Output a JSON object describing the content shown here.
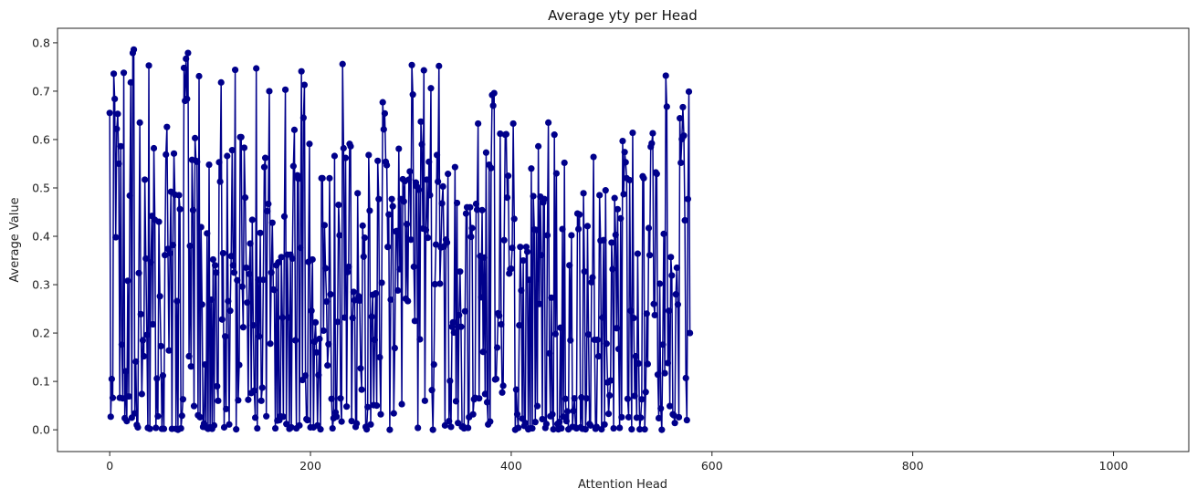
{
  "chart_data": {
    "type": "line",
    "title": "Average yty per Head",
    "xlabel": "Attention Head",
    "ylabel": "Average Value",
    "xlim": [
      -52,
      1075
    ],
    "ylim": [
      -0.045,
      0.83
    ],
    "xticks": [
      0,
      200,
      400,
      600,
      800,
      1000
    ],
    "yticks": [
      0.0,
      0.1,
      0.2,
      0.3,
      0.4,
      0.5,
      0.6,
      0.7,
      0.8
    ],
    "xtick_labels": [
      "0",
      "200",
      "400",
      "600",
      "800",
      "1000"
    ],
    "ytick_labels": [
      "0.0",
      "0.1",
      "0.2",
      "0.3",
      "0.4",
      "0.5",
      "0.6",
      "0.7",
      "0.8"
    ],
    "grid": false,
    "legend": "none",
    "marker": "circle",
    "color": "#00008b",
    "series": [
      {
        "x_start": 0,
        "x_step": 1,
        "values": [
          0.655,
          0.027,
          0.105,
          0.066,
          0.736,
          0.684,
          0.398,
          0.622,
          0.653,
          0.55,
          0.066,
          0.586,
          0.176,
          0.065,
          0.738,
          0.024,
          0.121,
          0.018,
          0.308,
          0.069,
          0.484,
          0.718,
          0.025,
          0.779,
          0.786,
          0.034,
          0.141,
          0.01,
          0.005,
          0.324,
          0.635,
          0.239,
          0.074,
          0.185,
          0.152,
          0.517,
          0.354,
          0.196,
          0.004,
          0.753,
          0.002,
          0.346,
          0.442,
          0.218,
          0.582,
          0.434,
          0.004,
          0.106,
          0.028,
          0.43,
          0.276,
          0.173,
          0.002,
          0.112,
          0.002,
          0.361,
          0.569,
          0.626,
          0.374,
          0.164,
          0.365,
          0.492,
          0.002,
          0.382,
          0.571,
          0.486,
          0.002,
          0.266,
          0.0,
          0.485,
          0.456,
          0.003,
          0.029,
          0.063,
          0.748,
          0.68,
          0.767,
          0.684,
          0.779,
          0.152,
          0.38,
          0.131,
          0.558,
          0.454,
          0.049,
          0.603,
          0.556,
          0.554,
          0.03,
          0.731,
          0.026,
          0.419,
          0.259,
          0.006,
          0.013,
          0.135,
          0.005,
          0.406,
          0.002,
          0.548,
          0.005,
          0.269,
          0.002,
          0.352,
          0.009,
          0.34,
          0.325,
          0.09,
          0.06,
          0.553,
          0.513,
          0.718,
          0.228,
          0.365,
          0.005,
          0.193,
          0.043,
          0.566,
          0.266,
          0.011,
          0.246,
          0.359,
          0.578,
          0.34,
          0.325,
          0.744,
          0.001,
          0.309,
          0.061,
          0.134,
          0.605,
          0.605,
          0.296,
          0.212,
          0.583,
          0.48,
          0.335,
          0.263,
          0.062,
          0.322,
          0.385,
          0.076,
          0.434,
          0.216,
          0.081,
          0.025,
          0.747,
          0.003,
          0.31,
          0.193,
          0.407,
          0.06,
          0.087,
          0.31,
          0.543,
          0.562,
          0.028,
          0.452,
          0.467,
          0.7,
          0.178,
          0.325,
          0.428,
          0.29,
          0.289,
          0.003,
          0.34,
          0.019,
          0.346,
          0.02,
          0.028,
          0.357,
          0.232,
          0.027,
          0.441,
          0.703,
          0.012,
          0.362,
          0.232,
          0.002,
          0.362,
          0.005,
          0.354,
          0.545,
          0.62,
          0.185,
          0.003,
          0.526,
          0.519,
          0.009,
          0.376,
          0.741,
          0.103,
          0.645,
          0.713,
          0.112,
          0.022,
          0.02,
          0.347,
          0.591,
          0.005,
          0.246,
          0.352,
          0.005,
          0.182,
          0.222,
          0.16,
          0.009,
          0.113,
          0.188,
          0.001,
          0.52,
          0.52,
          0.205,
          0.423,
          0.334,
          0.265,
          0.133,
          0.177,
          0.52,
          0.28,
          0.064,
          0.003,
          0.024,
          0.566,
          0.036,
          0.027,
          0.223,
          0.465,
          0.402,
          0.065,
          0.017,
          0.756,
          0.582,
          0.232,
          0.562,
          0.048,
          0.326,
          0.337,
          0.591,
          0.586,
          0.018,
          0.231,
          0.285,
          0.268,
          0.006,
          0.013,
          0.489,
          0.276,
          0.267,
          0.127,
          0.083,
          0.422,
          0.358,
          0.397,
          0.006,
          0.001,
          0.047,
          0.568,
          0.453,
          0.011,
          0.234,
          0.279,
          0.051,
          0.186,
          0.282,
          0.05,
          0.556,
          0.477,
          0.15,
          0.032,
          0.304,
          0.677,
          0.621,
          0.654,
          0.554,
          0.547,
          0.378,
          0.445,
          0.0,
          0.269,
          0.477,
          0.462,
          0.034,
          0.169,
          0.41,
          0.411,
          0.288,
          0.581,
          0.332,
          0.477,
          0.053,
          0.518,
          0.472,
          0.514,
          0.271,
          0.425,
          0.266,
          0.517,
          0.534,
          0.393,
          0.754,
          0.693,
          0.337,
          0.225,
          0.511,
          0.503,
          0.004,
          0.496,
          0.187,
          0.637,
          0.59,
          0.416,
          0.743,
          0.06,
          0.413,
          0.517,
          0.397,
          0.554,
          0.485,
          0.706,
          0.082,
          0.0,
          0.135,
          0.301,
          0.383,
          0.568,
          0.513,
          0.752,
          0.302,
          0.377,
          0.468,
          0.503,
          0.379,
          0.009,
          0.393,
          0.387,
          0.529,
          0.018,
          0.101,
          0.006,
          0.213,
          0.222,
          0.201,
          0.543,
          0.059,
          0.469,
          0.014,
          0.237,
          0.327,
          0.213,
          0.006,
          0.007,
          0.003,
          0.245,
          0.447,
          0.46,
          0.004,
          0.026,
          0.46,
          0.399,
          0.417,
          0.032,
          0.063,
          0.066,
          0.467,
          0.455,
          0.633,
          0.065,
          0.359,
          0.274,
          0.454,
          0.161,
          0.356,
          0.074,
          0.573,
          0.057,
          0.011,
          0.548,
          0.017,
          0.541,
          0.692,
          0.67,
          0.696,
          0.104,
          0.105,
          0.17,
          0.241,
          0.236,
          0.612,
          0.218,
          0.077,
          0.091,
          0.392,
          0.61,
          0.611,
          0.48,
          0.525,
          0.323,
          0.332,
          0.333,
          0.376,
          0.633,
          0.436,
          0.0,
          0.083,
          0.032,
          0.004,
          0.216,
          0.378,
          0.288,
          0.023,
          0.35,
          0.008,
          0.014,
          0.378,
          0.368,
          0.001,
          0.31,
          0.003,
          0.54,
          0.003,
          0.483,
          0.414,
          0.016,
          0.413,
          0.049,
          0.586,
          0.26,
          0.482,
          0.361,
          0.022,
          0.47,
          0.477,
          0.004,
          0.012,
          0.402,
          0.635,
          0.158,
          0.028,
          0.273,
          0.032,
          0.001,
          0.61,
          0.198,
          0.53,
          0.012,
          0.001,
          0.016,
          0.211,
          0.003,
          0.415,
          0.027,
          0.552,
          0.064,
          0.018,
          0.038,
          0.001,
          0.34,
          0.185,
          0.402,
          0.006,
          0.039,
          0.065,
          0.005,
          0.003,
          0.447,
          0.415,
          0.445,
          0.005,
          0.067,
          0.002,
          0.489,
          0.327,
          0.001,
          0.065,
          0.421,
          0.197,
          0.012,
          0.009,
          0.305,
          0.315,
          0.564,
          0.186,
          0.002,
          0.006,
          0.186,
          0.152,
          0.485,
          0.391,
          0.001,
          0.232,
          0.392,
          0.011,
          0.495,
          0.178,
          0.098,
          0.033,
          0.071,
          0.102,
          0.387,
          0.332,
          0.003,
          0.479,
          0.403,
          0.21,
          0.456,
          0.167,
          0.004,
          0.437,
          0.026,
          0.597,
          0.487,
          0.574,
          0.553,
          0.52,
          0.064,
          0.026,
          0.516,
          0.246,
          0.001,
          0.614,
          0.231,
          0.07,
          0.152,
          0.025,
          0.364,
          0.137,
          0.001,
          0.025,
          0.063,
          0.524,
          0.52,
          0.001,
          0.078,
          0.24,
          0.136,
          0.417,
          0.361,
          0.585,
          0.592,
          0.613,
          0.26,
          0.237,
          0.532,
          0.529,
          0.114,
          0.024,
          0.302,
          0.044,
          0.0,
          0.176,
          0.405,
          0.117,
          0.732,
          0.668,
          0.138,
          0.246,
          0.049,
          0.357,
          0.319,
          0.032,
          0.03,
          0.014,
          0.28,
          0.335,
          0.259,
          0.026,
          0.644,
          0.552,
          0.601,
          0.667,
          0.608,
          0.433,
          0.107,
          0.02,
          0.477,
          0.699,
          0.2
        ]
      }
    ]
  }
}
